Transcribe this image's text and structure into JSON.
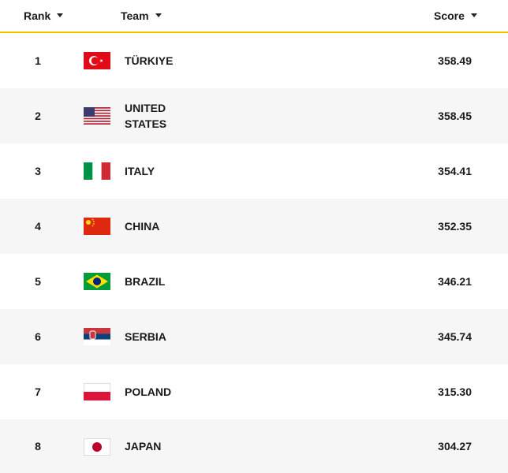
{
  "table": {
    "columns": [
      "Rank",
      "Team",
      "Score"
    ],
    "rows": [
      [
        1,
        "TÜRKIYE",
        "358.49"
      ],
      [
        2,
        "UNITED STATES",
        "358.45"
      ],
      [
        3,
        "ITALY",
        "354.41"
      ],
      [
        4,
        "CHINA",
        "352.35"
      ],
      [
        5,
        "BRAZIL",
        "346.21"
      ],
      [
        6,
        "SERBIA",
        "345.74"
      ],
      [
        7,
        "POLAND",
        "315.30"
      ],
      [
        8,
        "JAPAN",
        "304.27"
      ]
    ]
  }
}
